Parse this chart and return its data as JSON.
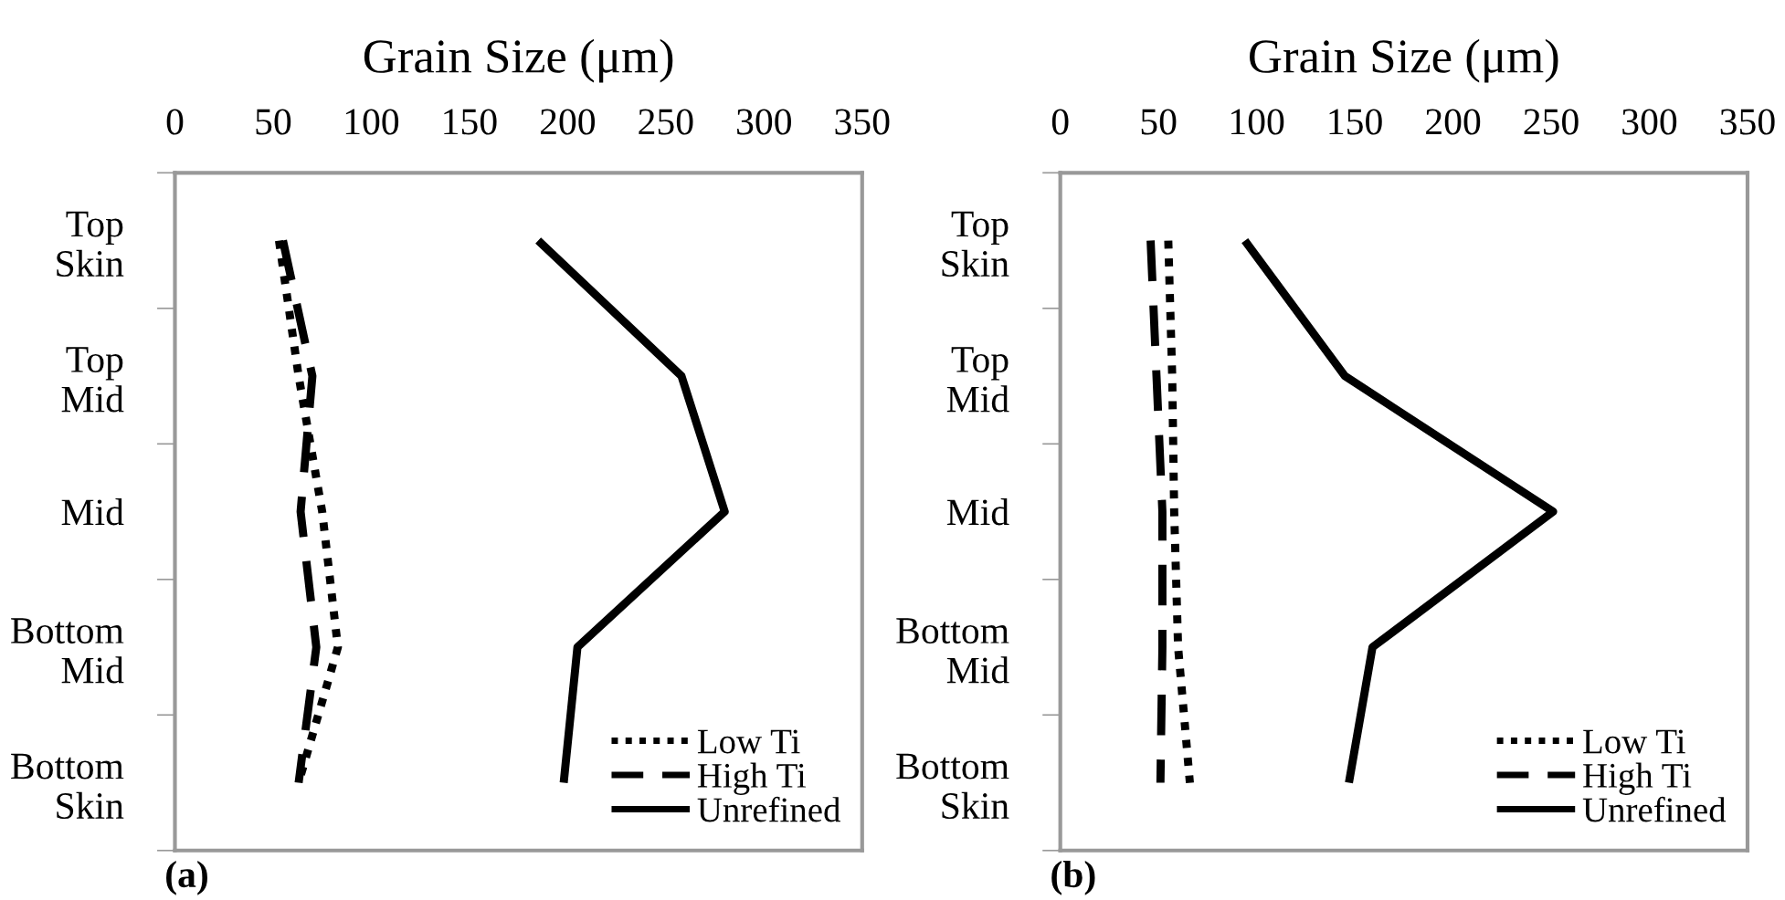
{
  "chart_data": [
    {
      "type": "line",
      "orientation": "horizontal",
      "xlabel": "Grain Size (μm)",
      "categories": [
        "Top Skin",
        "Top Mid",
        "Mid",
        "Bottom Mid",
        "Bottom Skin"
      ],
      "xlim": [
        0,
        350
      ],
      "xticks": [
        0,
        50,
        100,
        150,
        200,
        250,
        300,
        350
      ],
      "grid": false,
      "legend": "bottom right",
      "marker": "none",
      "annotations": [
        "(a)"
      ],
      "series": [
        {
          "name": "Low Ti",
          "color": "#000000",
          "line_style": "dotted",
          "values": [
            53,
            63,
            75,
            83,
            63
          ]
        },
        {
          "name": "High Ti",
          "color": "#000000",
          "line_style": "dashed",
          "values": [
            55,
            70,
            64,
            72,
            63
          ]
        },
        {
          "name": "Unrefined",
          "color": "#000000",
          "line_style": "solid",
          "values": [
            185,
            258,
            280,
            205,
            198
          ]
        }
      ]
    },
    {
      "type": "line",
      "orientation": "horizontal",
      "xlabel": "Grain Size (μm)",
      "categories": [
        "Top Skin",
        "Top Mid",
        "Mid",
        "Bottom Mid",
        "Bottom Skin"
      ],
      "xlim": [
        0,
        350
      ],
      "xticks": [
        0,
        50,
        100,
        150,
        200,
        250,
        300,
        350
      ],
      "grid": false,
      "legend": "bottom right",
      "marker": "none",
      "annotations": [
        "(b)"
      ],
      "series": [
        {
          "name": "Low Ti",
          "color": "#000000",
          "line_style": "dotted",
          "values": [
            55,
            57,
            58,
            60,
            66
          ]
        },
        {
          "name": "High Ti",
          "color": "#000000",
          "line_style": "dashed",
          "values": [
            46,
            49,
            52,
            52,
            51
          ]
        },
        {
          "name": "Unrefined",
          "color": "#000000",
          "line_style": "solid",
          "values": [
            94,
            145,
            251,
            159,
            147
          ]
        }
      ]
    }
  ]
}
